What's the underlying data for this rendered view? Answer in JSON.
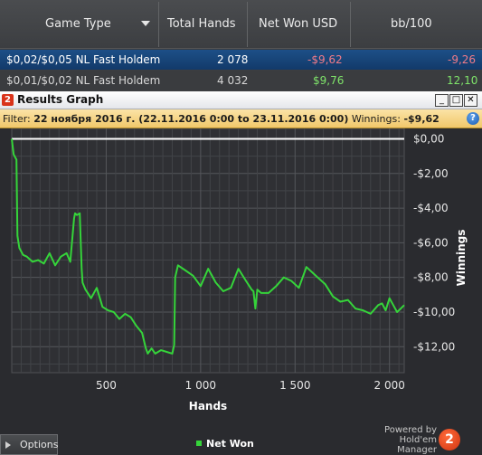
{
  "table": {
    "headers": [
      "Game Type",
      "Total Hands",
      "Net Won USD",
      "bb/100"
    ],
    "rows": [
      {
        "game": "$0,02/$0,05 NL Fast Holdem",
        "hands": "2 078",
        "net": "-$9,62",
        "bb": "-9,26"
      },
      {
        "game": "$0,01/$0,02 NL Fast Holdem",
        "hands": "4 032",
        "net": "$9,76",
        "bb": "12,10"
      }
    ]
  },
  "panel": {
    "badge": "2",
    "title": "Results Graph",
    "window_buttons": {
      "minimize": "_",
      "maximize": "□",
      "close": "✕"
    },
    "filter": {
      "label": "Filter:",
      "value": "22 ноября 2016 г. (22.11.2016 0:00 to 23.11.2016 0:00)",
      "winnings_label": "Winnings:",
      "winnings_value": "-$9,62"
    },
    "help": "?",
    "options_label": "Options",
    "legend_label": "Net Won",
    "powered_line1": "Powered by",
    "powered_line2": "Hold'em Manager",
    "powered_badge": "2"
  },
  "colors": {
    "line": "#35d43a",
    "zero_line": "#ffffff",
    "negative": "#f17b88",
    "positive": "#7fe46a"
  },
  "chart_data": {
    "type": "line",
    "xlabel": "Hands",
    "ylabel": "Winnings",
    "xlim": [
      0,
      2078
    ],
    "ylim": [
      -13.5,
      0.6
    ],
    "x_ticks": [
      500,
      1000,
      1500,
      2000
    ],
    "x_tick_labels": [
      "500",
      "1 000",
      "1 500",
      "2 000"
    ],
    "y_ticks": [
      0,
      -2,
      -4,
      -6,
      -8,
      -10,
      -12
    ],
    "y_tick_labels": [
      "$0,00",
      "-$2,00",
      "-$4,00",
      "-$6,00",
      "-$8,00",
      "-$10,00",
      "-$12,00"
    ],
    "grid": true,
    "series": [
      {
        "name": "Net Won",
        "x": [
          0,
          10,
          25,
          30,
          40,
          60,
          80,
          110,
          140,
          170,
          200,
          230,
          260,
          290,
          310,
          330,
          335,
          345,
          360,
          370,
          375,
          390,
          420,
          450,
          480,
          510,
          540,
          570,
          600,
          630,
          660,
          690,
          710,
          720,
          740,
          760,
          790,
          820,
          850,
          860,
          865,
          880,
          920,
          960,
          1000,
          1040,
          1080,
          1120,
          1160,
          1200,
          1240,
          1270,
          1280,
          1290,
          1300,
          1320,
          1360,
          1400,
          1440,
          1480,
          1520,
          1560,
          1600,
          1620,
          1660,
          1700,
          1740,
          1780,
          1820,
          1860,
          1900,
          1940,
          1960,
          1980,
          2000,
          2020,
          2040,
          2060,
          2078
        ],
        "y": [
          0,
          -0.9,
          -1.2,
          -5.6,
          -6.3,
          -6.7,
          -6.8,
          -7.1,
          -7.0,
          -7.2,
          -6.6,
          -7.3,
          -6.8,
          -6.6,
          -7.1,
          -4.6,
          -4.3,
          -4.4,
          -4.3,
          -7.5,
          -8.3,
          -8.7,
          -9.2,
          -8.6,
          -9.7,
          -9.9,
          -10.0,
          -10.4,
          -10.1,
          -10.3,
          -10.8,
          -11.2,
          -12.1,
          -12.4,
          -12.1,
          -12.4,
          -12.2,
          -12.3,
          -12.4,
          -11.9,
          -8.0,
          -7.3,
          -7.6,
          -7.9,
          -8.5,
          -7.5,
          -8.3,
          -8.8,
          -8.6,
          -7.5,
          -8.2,
          -8.7,
          -8.8,
          -9.8,
          -8.7,
          -8.9,
          -8.9,
          -8.5,
          -8.0,
          -8.2,
          -8.6,
          -7.4,
          -7.8,
          -8.0,
          -8.4,
          -9.1,
          -9.4,
          -9.3,
          -9.8,
          -9.9,
          -10.1,
          -9.6,
          -9.5,
          -9.9,
          -9.2,
          -9.6,
          -10.0,
          -9.8,
          -9.6
        ]
      }
    ]
  }
}
